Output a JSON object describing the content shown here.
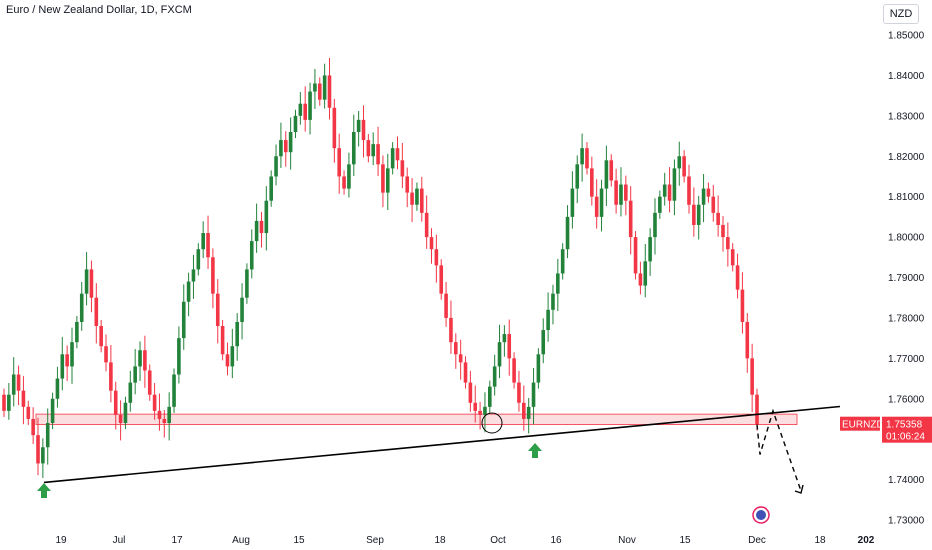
{
  "header": {
    "title": "Euro / New Zealand Dollar, 1D, FXCM",
    "currency": "NZD"
  },
  "price_tag": {
    "symbol": "EURNZD",
    "price": "1.75358",
    "countdown": "01:06:24",
    "color": "#f23645"
  },
  "colors": {
    "up": "#22823a",
    "down": "#f23645",
    "zone_fill": "#f7c3c6",
    "zone_stroke": "#f23645",
    "trendline": "#000000",
    "arrow": "#2e9e48"
  },
  "icons": [
    "up-arrow-icon",
    "circle-highlight-icon",
    "projection-dashed-path",
    "tradingview-logo-icon"
  ],
  "chart_data": {
    "type": "candlestick",
    "symbol": "EURNZD",
    "y_ticks": [
      "1.85000",
      "1.84000",
      "1.83000",
      "1.82000",
      "1.81000",
      "1.80000",
      "1.79000",
      "1.78000",
      "1.77000",
      "1.76000",
      "1.75000",
      "1.74000",
      "1.73000"
    ],
    "x_ticks": [
      "19",
      "Jul",
      "17",
      "Aug",
      "15",
      "Sep",
      "18",
      "Oct",
      "16",
      "Nov",
      "15",
      "Dec",
      "18",
      "202"
    ],
    "ylim": [
      1.7255,
      1.8545
    ],
    "close_values": [
      1.757,
      1.761,
      1.766,
      1.762,
      1.758,
      1.755,
      1.751,
      1.744,
      1.748,
      1.754,
      1.76,
      1.765,
      1.771,
      1.768,
      1.774,
      1.779,
      1.786,
      1.792,
      1.785,
      1.778,
      1.773,
      1.769,
      1.762,
      1.756,
      1.754,
      1.759,
      1.764,
      1.768,
      1.772,
      1.767,
      1.761,
      1.757,
      1.755,
      1.754,
      1.758,
      1.766,
      1.775,
      1.784,
      1.789,
      1.792,
      1.797,
      1.801,
      1.795,
      1.786,
      1.778,
      1.771,
      1.768,
      1.773,
      1.779,
      1.785,
      1.792,
      1.799,
      1.804,
      1.801,
      1.809,
      1.815,
      1.82,
      1.824,
      1.821,
      1.826,
      1.83,
      1.833,
      1.829,
      1.836,
      1.838,
      1.834,
      1.84,
      1.832,
      1.822,
      1.815,
      1.812,
      1.818,
      1.826,
      1.829,
      1.824,
      1.82,
      1.823,
      1.818,
      1.811,
      1.817,
      1.822,
      1.819,
      1.815,
      1.811,
      1.808,
      1.812,
      1.806,
      1.8,
      1.797,
      1.793,
      1.786,
      1.78,
      1.774,
      1.771,
      1.769,
      1.764,
      1.759,
      1.757,
      1.756,
      1.758,
      1.763,
      1.768,
      1.774,
      1.776,
      1.77,
      1.764,
      1.759,
      1.755,
      1.758,
      1.764,
      1.771,
      1.777,
      1.782,
      1.786,
      1.791,
      1.797,
      1.805,
      1.812,
      1.818,
      1.822,
      1.817,
      1.81,
      1.805,
      1.812,
      1.819,
      1.814,
      1.808,
      1.813,
      1.809,
      1.8,
      1.791,
      1.788,
      1.794,
      1.8,
      1.806,
      1.81,
      1.813,
      1.809,
      1.817,
      1.82,
      1.815,
      1.808,
      1.803,
      1.808,
      1.812,
      1.81,
      1.806,
      1.803,
      1.8,
      1.797,
      1.793,
      1.787,
      1.779,
      1.77,
      1.761,
      1.7536
    ],
    "support_zone": [
      1.7546,
      1.7557
    ],
    "trendline": {
      "from_value": 1.7393,
      "to_value": 1.7566
    },
    "projection": [
      1.7536,
      1.7462,
      1.757,
      1.7372
    ]
  }
}
